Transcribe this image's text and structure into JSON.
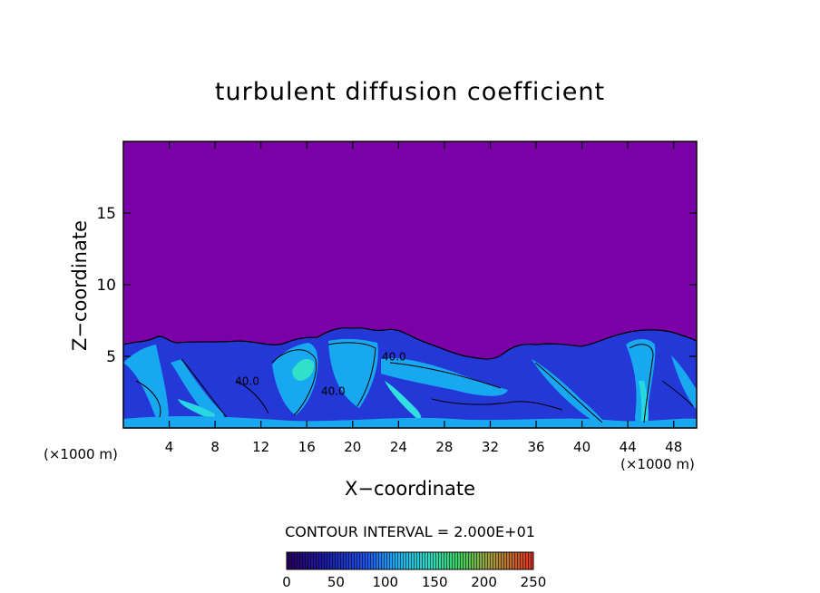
{
  "chart_data": {
    "type": "heatmap",
    "title": "turbulent diffusion coefficient",
    "xlabel": "X−coordinate",
    "ylabel": "Z−coordinate",
    "x_unit_left": "(×1000 m)",
    "x_unit_right": "(×1000 m)",
    "xlim": [
      0,
      50
    ],
    "ylim": [
      0,
      20
    ],
    "xticks": [
      4,
      8,
      12,
      16,
      20,
      24,
      28,
      32,
      36,
      40,
      44,
      48
    ],
    "yticks": [
      5,
      10,
      15
    ],
    "contour_interval_text": "CONTOUR INTERVAL = 2.000E+01",
    "contour_labels": [
      {
        "text": "40.0",
        "x": 23.6,
        "z": 4.7
      },
      {
        "text": "40.0",
        "x": 18.3,
        "z": 2.3
      },
      {
        "text": "40.0",
        "x": 10.8,
        "z": 3.0
      }
    ],
    "colorbar": {
      "ticks": [
        0,
        50,
        100,
        150,
        200,
        250
      ],
      "range": [
        0,
        250
      ]
    },
    "colors": {
      "background_field": "#7B00A8",
      "low_mix": "#2030E0",
      "mid_mix": "#1AA0F0",
      "high_mix": "#30E0E0"
    }
  }
}
